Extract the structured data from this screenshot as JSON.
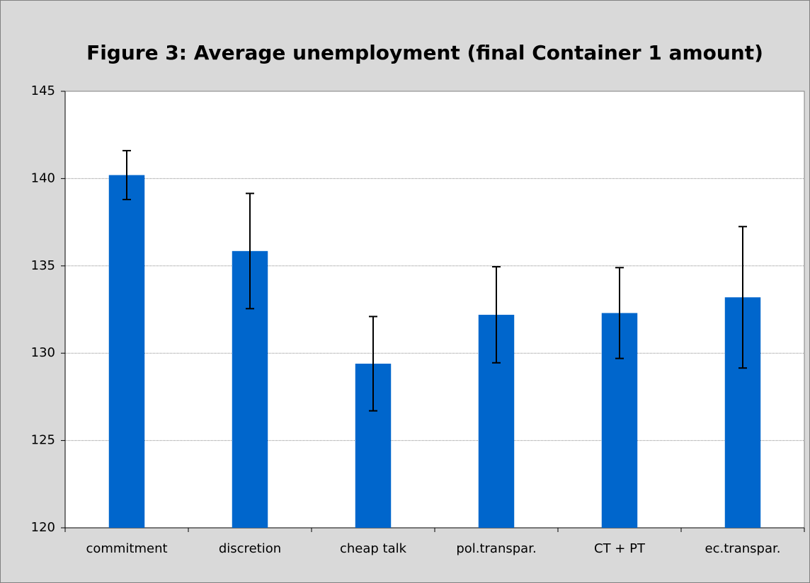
{
  "chart_data": {
    "type": "bar",
    "title": "Figure 3: Average unemployment (final Container 1 amount)",
    "categories": [
      "commitment",
      "discretion",
      "cheap talk",
      "pol.transpar.",
      "CT + PT",
      "ec.transpar."
    ],
    "values": [
      140.2,
      135.85,
      129.4,
      132.2,
      132.3,
      133.2
    ],
    "errors": [
      1.4,
      3.3,
      2.7,
      2.75,
      2.6,
      4.05
    ],
    "color": "#0066cc",
    "ylim": [
      120,
      145
    ],
    "yticks": [
      120,
      125,
      130,
      135,
      140,
      145
    ],
    "grid": true
  }
}
